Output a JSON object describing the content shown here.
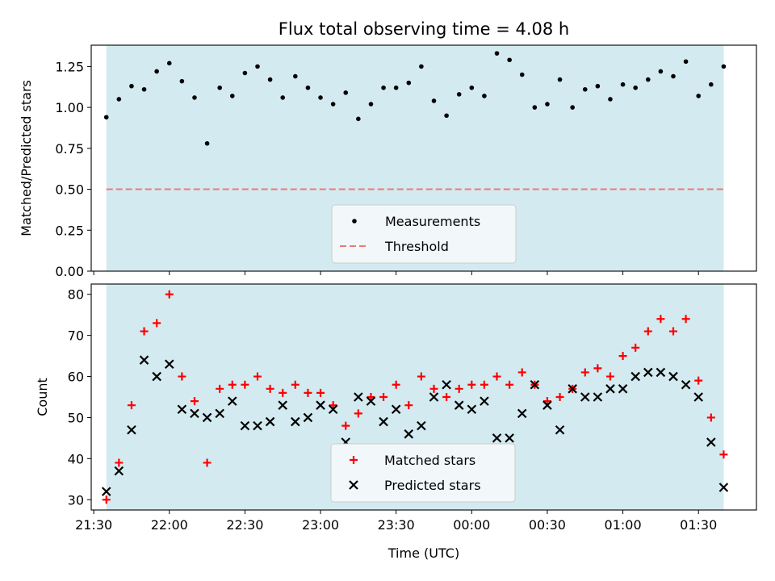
{
  "figure": {
    "title": "Flux total observing time = 4.08 h"
  },
  "chart_data": [
    {
      "type": "scatter",
      "ylabel": "Matched/Predicted stars",
      "ylim": [
        0,
        1.38
      ],
      "xlim": [
        "21:29",
        "01:53"
      ],
      "yticks": [
        "0.00",
        "0.25",
        "0.50",
        "0.75",
        "1.00",
        "1.25"
      ],
      "yticks_values": [
        0,
        0.25,
        0.5,
        0.75,
        1.0,
        1.25
      ],
      "shaded_span": [
        "21:35",
        "01:40"
      ],
      "legend_position": "bottom-center",
      "legend": [
        "Measurements",
        "Threshold"
      ],
      "threshold": 0.5,
      "series": [
        {
          "name": "Measurements",
          "x": [
            "21:35",
            "21:40",
            "21:45",
            "21:50",
            "21:55",
            "22:00",
            "22:05",
            "22:10",
            "22:15",
            "22:20",
            "22:25",
            "22:30",
            "22:35",
            "22:40",
            "22:45",
            "22:50",
            "22:55",
            "23:00",
            "23:05",
            "23:10",
            "23:15",
            "23:20",
            "23:25",
            "23:30",
            "23:35",
            "23:40",
            "23:45",
            "23:50",
            "23:55",
            "00:00",
            "00:05",
            "00:10",
            "00:15",
            "00:20",
            "00:25",
            "00:30",
            "00:35",
            "00:40",
            "00:45",
            "00:50",
            "00:55",
            "01:00",
            "01:05",
            "01:10",
            "01:15",
            "01:20",
            "01:25",
            "01:30",
            "01:35",
            "01:40"
          ],
          "y": [
            0.94,
            1.05,
            1.13,
            1.11,
            1.22,
            1.27,
            1.16,
            1.06,
            0.78,
            1.12,
            1.07,
            1.21,
            1.25,
            1.17,
            1.06,
            1.19,
            1.12,
            1.06,
            1.02,
            1.09,
            0.93,
            1.02,
            1.12,
            1.12,
            1.15,
            1.25,
            1.04,
            0.95,
            1.08,
            1.12,
            1.07,
            1.33,
            1.29,
            1.2,
            1.0,
            1.02,
            1.17,
            1.0,
            1.11,
            1.13,
            1.05,
            1.14,
            1.12,
            1.17,
            1.22,
            1.19,
            1.28,
            1.07,
            1.14,
            1.25
          ]
        }
      ]
    },
    {
      "type": "scatter",
      "ylabel": "Count",
      "xlabel": "Time (UTC)",
      "ylim": [
        27.5,
        82.5
      ],
      "xlim": [
        "21:29",
        "01:53"
      ],
      "yticks": [
        "30",
        "40",
        "50",
        "60",
        "70",
        "80"
      ],
      "yticks_values": [
        30,
        40,
        50,
        60,
        70,
        80
      ],
      "xticks": [
        "21:30",
        "22:00",
        "22:30",
        "23:00",
        "23:30",
        "00:00",
        "00:30",
        "01:00",
        "01:30"
      ],
      "shaded_span": [
        "21:35",
        "01:40"
      ],
      "legend_position": "bottom-center",
      "legend": [
        "Matched stars",
        "Predicted stars"
      ],
      "series": [
        {
          "name": "Matched stars",
          "marker": "plus",
          "color": "#ff0000",
          "x": [
            "21:35",
            "21:40",
            "21:45",
            "21:50",
            "21:55",
            "22:00",
            "22:05",
            "22:10",
            "22:15",
            "22:20",
            "22:25",
            "22:30",
            "22:35",
            "22:40",
            "22:45",
            "22:50",
            "22:55",
            "23:00",
            "23:05",
            "23:10",
            "23:15",
            "23:20",
            "23:25",
            "23:30",
            "23:35",
            "23:40",
            "23:45",
            "23:50",
            "23:55",
            "00:00",
            "00:05",
            "00:10",
            "00:15",
            "00:20",
            "00:25",
            "00:30",
            "00:35",
            "00:40",
            "00:45",
            "00:50",
            "00:55",
            "01:00",
            "01:05",
            "01:10",
            "01:15",
            "01:20",
            "01:25",
            "01:30",
            "01:35",
            "01:40"
          ],
          "y": [
            30,
            39,
            53,
            71,
            73,
            80,
            60,
            54,
            39,
            57,
            58,
            58,
            60,
            57,
            56,
            58,
            56,
            56,
            53,
            48,
            51,
            55,
            55,
            58,
            53,
            60,
            57,
            55,
            57,
            58,
            58,
            60,
            58,
            61,
            58,
            54,
            55,
            57,
            61,
            62,
            60,
            65,
            67,
            71,
            74,
            71,
            74,
            59,
            50,
            41
          ]
        },
        {
          "name": "Predicted stars",
          "marker": "x",
          "color": "#000000",
          "x": [
            "21:35",
            "21:40",
            "21:45",
            "21:50",
            "21:55",
            "22:00",
            "22:05",
            "22:10",
            "22:15",
            "22:20",
            "22:25",
            "22:30",
            "22:35",
            "22:40",
            "22:45",
            "22:50",
            "22:55",
            "23:00",
            "23:05",
            "23:10",
            "23:15",
            "23:20",
            "23:25",
            "23:30",
            "23:35",
            "23:40",
            "23:45",
            "23:50",
            "23:55",
            "00:00",
            "00:05",
            "00:10",
            "00:15",
            "00:20",
            "00:25",
            "00:30",
            "00:35",
            "00:40",
            "00:45",
            "00:50",
            "00:55",
            "01:00",
            "01:05",
            "01:10",
            "01:15",
            "01:20",
            "01:25",
            "01:30",
            "01:35",
            "01:40"
          ],
          "y": [
            32,
            37,
            47,
            64,
            60,
            63,
            52,
            51,
            50,
            51,
            54,
            48,
            48,
            49,
            53,
            49,
            50,
            53,
            52,
            44,
            55,
            54,
            49,
            52,
            46,
            48,
            55,
            58,
            53,
            52,
            54,
            45,
            45,
            51,
            58,
            53,
            47,
            57,
            55,
            55,
            57,
            57,
            60,
            61,
            61,
            60,
            58,
            55,
            44,
            33
          ]
        }
      ]
    }
  ],
  "colors": {
    "shade": "#d3eaf0",
    "threshold": "#f07878",
    "legend_bg": "#f2f7fa"
  }
}
